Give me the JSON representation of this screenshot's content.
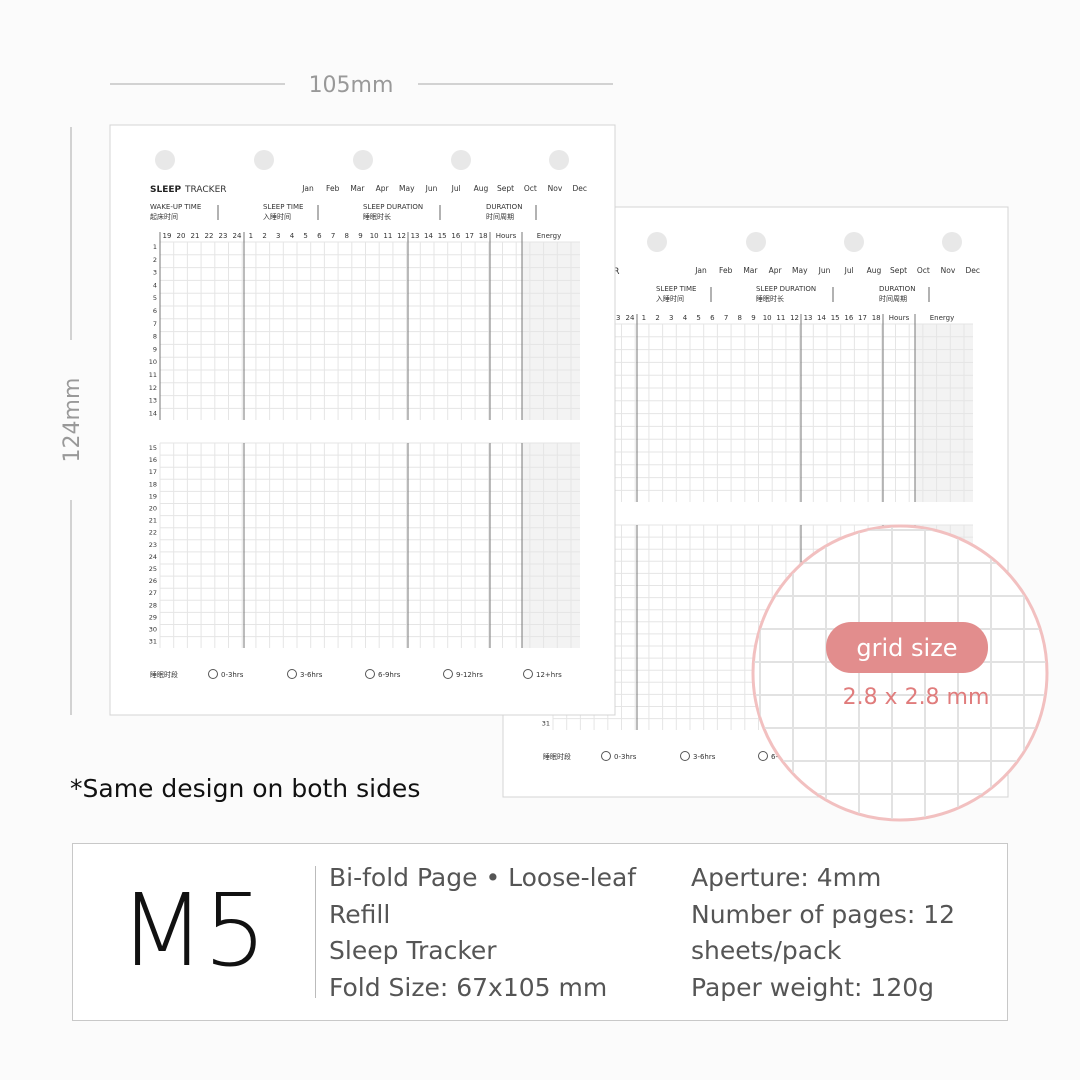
{
  "dimensions": {
    "width": "105mm",
    "height": "124mm"
  },
  "sheet": {
    "title_bold": "SLEEP",
    "title": "TRACKER",
    "months": [
      "Jan",
      "Feb",
      "Mar",
      "Apr",
      "May",
      "Jun",
      "Jul",
      "Aug",
      "Sept",
      "Oct",
      "Nov",
      "Dec"
    ],
    "headers": [
      {
        "en": "WAKE-UP TIME",
        "zh": "起床时间"
      },
      {
        "en": "SLEEP TIME",
        "zh": "入睡时间"
      },
      {
        "en": "SLEEP DURATION",
        "zh": "睡眠时长"
      },
      {
        "en": "DURATION",
        "zh": "时间周期"
      }
    ],
    "hour_columns": [
      19,
      20,
      21,
      22,
      23,
      24,
      1,
      2,
      3,
      4,
      5,
      6,
      7,
      8,
      9,
      10,
      11,
      12,
      13,
      14,
      15,
      16,
      17,
      18
    ],
    "hours_label": "Hours",
    "energy_label": "Energy",
    "days": [
      1,
      2,
      3,
      4,
      5,
      6,
      7,
      8,
      9,
      10,
      11,
      12,
      13,
      14,
      15,
      16,
      17,
      18,
      19,
      20,
      21,
      22,
      23,
      24,
      25,
      26,
      27,
      28,
      29,
      30,
      31
    ],
    "footer_label": "睡眠时段",
    "options": [
      "0-3hrs",
      "3-6hrs",
      "6-9hrs",
      "9-12hrs",
      "12+hrs"
    ]
  },
  "zoom": {
    "label": "grid size",
    "value": "2.8 x 2.8 mm"
  },
  "note": "*Same design on both sides",
  "product": {
    "model": "M5",
    "details_left": [
      "Bi-fold Page • Loose-leaf Refill",
      "Sleep Tracker",
      "Fold Size: 67x105 mm"
    ],
    "details_right": [
      "Aperture: 4mm",
      "Number of pages: 12 sheets/pack",
      "Paper weight: 120g"
    ]
  }
}
